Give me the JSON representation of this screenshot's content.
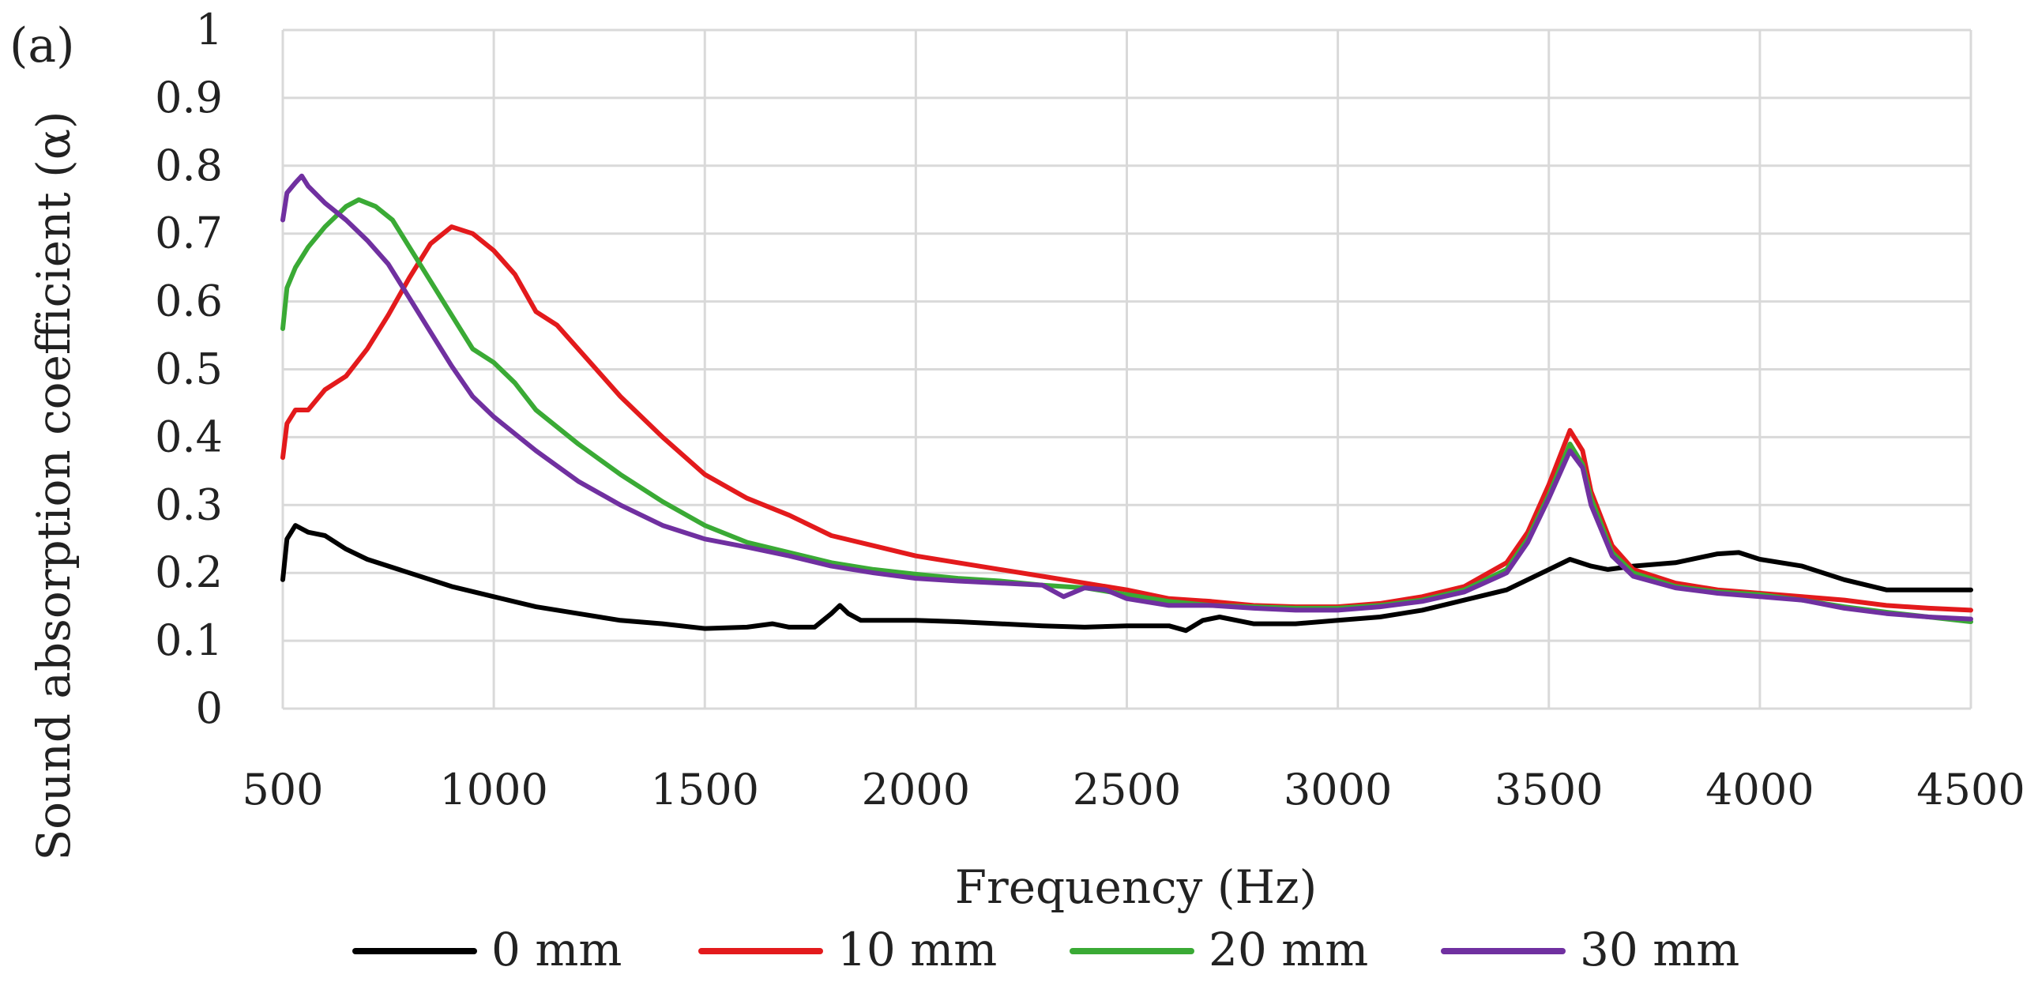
{
  "panel_label": "(a)",
  "chart_data": {
    "type": "line",
    "title": "",
    "xlabel": "Frequency (Hz)",
    "ylabel": "Sound absorption coefficient (α)",
    "xlim": [
      500,
      4500
    ],
    "ylim": [
      0,
      1
    ],
    "grid": true,
    "legend_position": "bottom",
    "x_ticks": [
      500,
      1000,
      1500,
      2000,
      2500,
      3000,
      3500,
      4000,
      4500
    ],
    "x_tick_labels": [
      "500",
      "1000",
      "1500",
      "2000",
      "2500",
      "3000",
      "3500",
      "4000",
      "4500"
    ],
    "y_ticks": [
      0,
      0.1,
      0.2,
      0.3,
      0.4,
      0.5,
      0.6,
      0.7,
      0.8,
      0.9,
      1
    ],
    "y_tick_labels": [
      "0",
      "0.1",
      "0.2",
      "0.3",
      "0.4",
      "0.5",
      "0.6",
      "0.7",
      "0.8",
      "0.9",
      "1"
    ],
    "series": [
      {
        "name": "0 mm",
        "color": "#000000",
        "points": [
          [
            500,
            0.19
          ],
          [
            510,
            0.25
          ],
          [
            530,
            0.27
          ],
          [
            560,
            0.26
          ],
          [
            600,
            0.255
          ],
          [
            650,
            0.235
          ],
          [
            700,
            0.22
          ],
          [
            800,
            0.2
          ],
          [
            900,
            0.18
          ],
          [
            1000,
            0.165
          ],
          [
            1100,
            0.15
          ],
          [
            1200,
            0.14
          ],
          [
            1300,
            0.13
          ],
          [
            1400,
            0.125
          ],
          [
            1500,
            0.118
          ],
          [
            1600,
            0.12
          ],
          [
            1660,
            0.125
          ],
          [
            1700,
            0.12
          ],
          [
            1760,
            0.12
          ],
          [
            1800,
            0.14
          ],
          [
            1820,
            0.152
          ],
          [
            1840,
            0.14
          ],
          [
            1870,
            0.13
          ],
          [
            1950,
            0.13
          ],
          [
            2000,
            0.13
          ],
          [
            2100,
            0.128
          ],
          [
            2200,
            0.125
          ],
          [
            2300,
            0.122
          ],
          [
            2400,
            0.12
          ],
          [
            2500,
            0.122
          ],
          [
            2600,
            0.122
          ],
          [
            2640,
            0.115
          ],
          [
            2680,
            0.13
          ],
          [
            2720,
            0.135
          ],
          [
            2800,
            0.125
          ],
          [
            2900,
            0.125
          ],
          [
            3000,
            0.13
          ],
          [
            3100,
            0.135
          ],
          [
            3200,
            0.145
          ],
          [
            3300,
            0.16
          ],
          [
            3400,
            0.175
          ],
          [
            3500,
            0.205
          ],
          [
            3550,
            0.22
          ],
          [
            3600,
            0.21
          ],
          [
            3640,
            0.205
          ],
          [
            3700,
            0.21
          ],
          [
            3800,
            0.215
          ],
          [
            3900,
            0.228
          ],
          [
            3950,
            0.23
          ],
          [
            4000,
            0.22
          ],
          [
            4100,
            0.21
          ],
          [
            4200,
            0.19
          ],
          [
            4300,
            0.175
          ],
          [
            4400,
            0.175
          ],
          [
            4500,
            0.175
          ]
        ]
      },
      {
        "name": "10 mm",
        "color": "#e31a1c",
        "points": [
          [
            500,
            0.37
          ],
          [
            510,
            0.42
          ],
          [
            530,
            0.44
          ],
          [
            560,
            0.44
          ],
          [
            600,
            0.47
          ],
          [
            650,
            0.49
          ],
          [
            700,
            0.53
          ],
          [
            750,
            0.58
          ],
          [
            800,
            0.635
          ],
          [
            850,
            0.685
          ],
          [
            900,
            0.71
          ],
          [
            950,
            0.7
          ],
          [
            1000,
            0.675
          ],
          [
            1050,
            0.64
          ],
          [
            1100,
            0.585
          ],
          [
            1150,
            0.565
          ],
          [
            1200,
            0.53
          ],
          [
            1300,
            0.46
          ],
          [
            1400,
            0.4
          ],
          [
            1500,
            0.345
          ],
          [
            1600,
            0.31
          ],
          [
            1700,
            0.285
          ],
          [
            1800,
            0.255
          ],
          [
            1900,
            0.24
          ],
          [
            2000,
            0.225
          ],
          [
            2100,
            0.215
          ],
          [
            2200,
            0.205
          ],
          [
            2300,
            0.195
          ],
          [
            2400,
            0.185
          ],
          [
            2500,
            0.175
          ],
          [
            2600,
            0.162
          ],
          [
            2700,
            0.158
          ],
          [
            2800,
            0.152
          ],
          [
            2900,
            0.15
          ],
          [
            3000,
            0.15
          ],
          [
            3100,
            0.155
          ],
          [
            3200,
            0.165
          ],
          [
            3300,
            0.18
          ],
          [
            3400,
            0.215
          ],
          [
            3450,
            0.26
          ],
          [
            3500,
            0.33
          ],
          [
            3550,
            0.41
          ],
          [
            3580,
            0.38
          ],
          [
            3600,
            0.32
          ],
          [
            3650,
            0.24
          ],
          [
            3700,
            0.205
          ],
          [
            3800,
            0.185
          ],
          [
            3900,
            0.175
          ],
          [
            4000,
            0.17
          ],
          [
            4100,
            0.165
          ],
          [
            4200,
            0.16
          ],
          [
            4300,
            0.152
          ],
          [
            4400,
            0.148
          ],
          [
            4500,
            0.145
          ]
        ]
      },
      {
        "name": "20 mm",
        "color": "#3aaa35",
        "points": [
          [
            500,
            0.56
          ],
          [
            510,
            0.62
          ],
          [
            530,
            0.65
          ],
          [
            560,
            0.68
          ],
          [
            600,
            0.71
          ],
          [
            650,
            0.74
          ],
          [
            680,
            0.75
          ],
          [
            720,
            0.74
          ],
          [
            760,
            0.72
          ],
          [
            800,
            0.68
          ],
          [
            850,
            0.63
          ],
          [
            900,
            0.58
          ],
          [
            950,
            0.53
          ],
          [
            1000,
            0.51
          ],
          [
            1050,
            0.48
          ],
          [
            1100,
            0.44
          ],
          [
            1200,
            0.39
          ],
          [
            1300,
            0.345
          ],
          [
            1400,
            0.305
          ],
          [
            1500,
            0.27
          ],
          [
            1600,
            0.245
          ],
          [
            1700,
            0.23
          ],
          [
            1800,
            0.215
          ],
          [
            1900,
            0.205
          ],
          [
            2000,
            0.198
          ],
          [
            2100,
            0.192
          ],
          [
            2200,
            0.188
          ],
          [
            2300,
            0.182
          ],
          [
            2400,
            0.178
          ],
          [
            2500,
            0.168
          ],
          [
            2600,
            0.158
          ],
          [
            2700,
            0.152
          ],
          [
            2800,
            0.15
          ],
          [
            2900,
            0.148
          ],
          [
            3000,
            0.148
          ],
          [
            3100,
            0.152
          ],
          [
            3200,
            0.16
          ],
          [
            3300,
            0.175
          ],
          [
            3400,
            0.205
          ],
          [
            3450,
            0.25
          ],
          [
            3500,
            0.315
          ],
          [
            3550,
            0.39
          ],
          [
            3580,
            0.36
          ],
          [
            3600,
            0.31
          ],
          [
            3650,
            0.23
          ],
          [
            3700,
            0.2
          ],
          [
            3800,
            0.18
          ],
          [
            3900,
            0.172
          ],
          [
            4000,
            0.168
          ],
          [
            4100,
            0.16
          ],
          [
            4200,
            0.15
          ],
          [
            4300,
            0.142
          ],
          [
            4400,
            0.135
          ],
          [
            4500,
            0.128
          ]
        ]
      },
      {
        "name": "30 mm",
        "color": "#7030a0",
        "points": [
          [
            500,
            0.72
          ],
          [
            510,
            0.76
          ],
          [
            530,
            0.775
          ],
          [
            545,
            0.785
          ],
          [
            560,
            0.77
          ],
          [
            600,
            0.745
          ],
          [
            650,
            0.72
          ],
          [
            700,
            0.69
          ],
          [
            750,
            0.655
          ],
          [
            800,
            0.605
          ],
          [
            850,
            0.555
          ],
          [
            900,
            0.505
          ],
          [
            950,
            0.46
          ],
          [
            1000,
            0.43
          ],
          [
            1100,
            0.38
          ],
          [
            1200,
            0.335
          ],
          [
            1300,
            0.3
          ],
          [
            1400,
            0.27
          ],
          [
            1500,
            0.25
          ],
          [
            1600,
            0.238
          ],
          [
            1700,
            0.225
          ],
          [
            1800,
            0.21
          ],
          [
            1900,
            0.2
          ],
          [
            2000,
            0.192
          ],
          [
            2100,
            0.188
          ],
          [
            2200,
            0.185
          ],
          [
            2300,
            0.182
          ],
          [
            2350,
            0.165
          ],
          [
            2400,
            0.178
          ],
          [
            2450,
            0.175
          ],
          [
            2500,
            0.162
          ],
          [
            2600,
            0.152
          ],
          [
            2700,
            0.152
          ],
          [
            2800,
            0.148
          ],
          [
            2900,
            0.145
          ],
          [
            3000,
            0.145
          ],
          [
            3100,
            0.15
          ],
          [
            3200,
            0.158
          ],
          [
            3300,
            0.172
          ],
          [
            3400,
            0.2
          ],
          [
            3450,
            0.245
          ],
          [
            3500,
            0.31
          ],
          [
            3550,
            0.38
          ],
          [
            3580,
            0.355
          ],
          [
            3600,
            0.3
          ],
          [
            3650,
            0.225
          ],
          [
            3700,
            0.195
          ],
          [
            3800,
            0.178
          ],
          [
            3900,
            0.17
          ],
          [
            4000,
            0.165
          ],
          [
            4100,
            0.16
          ],
          [
            4200,
            0.148
          ],
          [
            4300,
            0.14
          ],
          [
            4400,
            0.135
          ],
          [
            4500,
            0.132
          ]
        ]
      }
    ]
  }
}
